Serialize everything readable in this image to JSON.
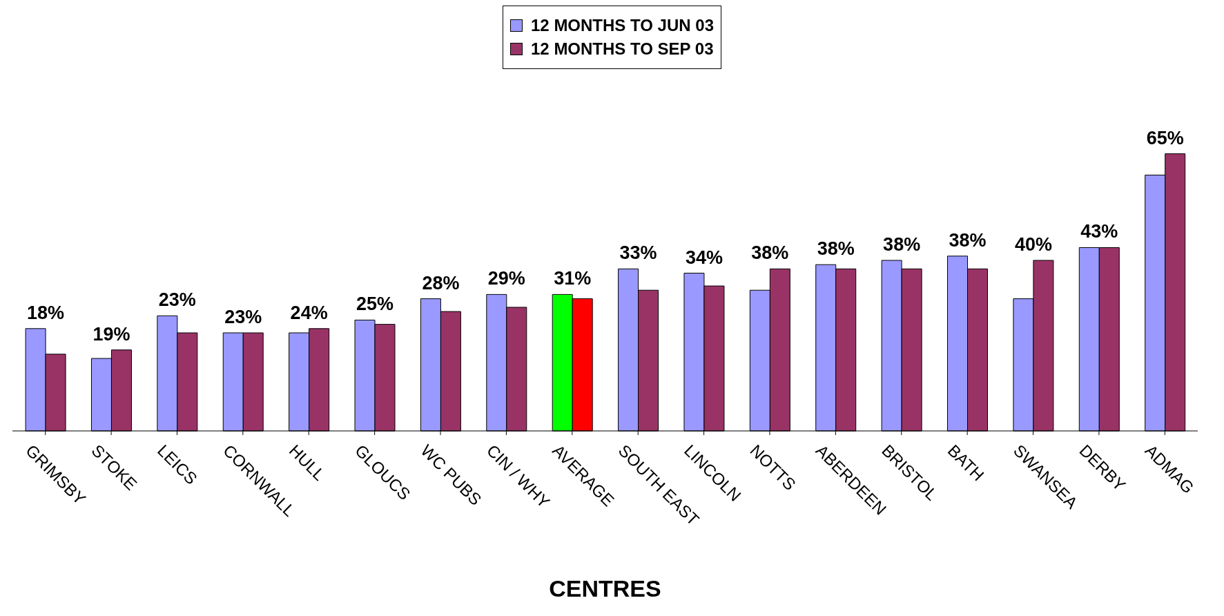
{
  "chart_data": {
    "type": "bar",
    "xlabel": "CENTRES",
    "categories": [
      "GRIMSBY",
      "STOKE",
      "LEICS",
      "CORNWALL",
      "HULL",
      "GLOUCS",
      "WC PUBS",
      "CIN / WHY",
      "AVERAGE",
      "SOUTH EAST",
      "LINCOLN",
      "NOTTS",
      "ABERDEEN",
      "BRISTOL",
      "BATH",
      "SWANSEA",
      "DERBY",
      "ADMAG"
    ],
    "series": [
      {
        "name": "12 MONTHS TO JUN 03",
        "color": "#9999ff",
        "colors": [
          "#9999ff",
          "#9999ff",
          "#9999ff",
          "#9999ff",
          "#9999ff",
          "#9999ff",
          "#9999ff",
          "#9999ff",
          "#00ff00",
          "#9999ff",
          "#9999ff",
          "#9999ff",
          "#9999ff",
          "#9999ff",
          "#9999ff",
          "#9999ff",
          "#9999ff",
          "#9999ff"
        ],
        "values": [
          24,
          17,
          27,
          23,
          23,
          26,
          31,
          32,
          32,
          38,
          37,
          33,
          39,
          40,
          41,
          31,
          43,
          60
        ]
      },
      {
        "name": "12 MONTHS TO SEP 03",
        "color": "#993366",
        "colors": [
          "#993366",
          "#993366",
          "#993366",
          "#993366",
          "#993366",
          "#993366",
          "#993366",
          "#993366",
          "#ff0000",
          "#993366",
          "#993366",
          "#993366",
          "#993366",
          "#993366",
          "#993366",
          "#993366",
          "#993366",
          "#993366"
        ],
        "values": [
          18,
          19,
          23,
          23,
          24,
          25,
          28,
          29,
          31,
          33,
          34,
          38,
          38,
          38,
          38,
          40,
          43,
          65
        ],
        "value_labels": [
          "18%",
          "19%",
          "23%",
          "23%",
          "24%",
          "25%",
          "28%",
          "29%",
          "31%",
          "33%",
          "34%",
          "38%",
          "38%",
          "38%",
          "38%",
          "40%",
          "43%",
          "65%"
        ]
      }
    ],
    "legend": "top",
    "tick_labels": "x",
    "grid": false
  }
}
